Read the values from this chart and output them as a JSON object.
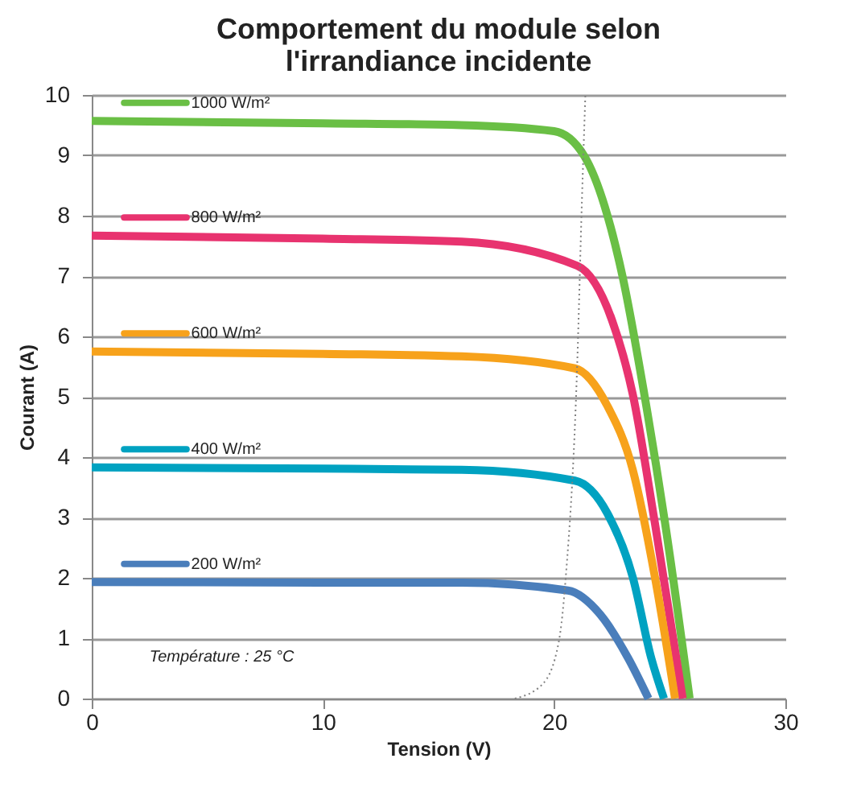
{
  "chart_data": {
    "type": "line",
    "title": "Comportement du module selon\nl'irrandiance incidente",
    "xlabel": "Tension (V)",
    "ylabel": "Courant (A)",
    "xlim": [
      0,
      30
    ],
    "xticks": [
      0,
      10,
      20,
      30
    ],
    "ylim": [
      0,
      10
    ],
    "yticks": [
      0,
      1,
      2,
      3,
      4,
      5,
      6,
      7,
      8,
      9,
      10
    ],
    "grid": "y",
    "legend": "top left",
    "marker": "none",
    "line_style": "solid",
    "annotations": [
      "Température : 25 °C"
    ],
    "series": [
      {
        "name": "1000 W/m²",
        "color": "#6abf45",
        "x": [
          0,
          10,
          16,
          20,
          21.3,
          22.96,
          23.9,
          24.8,
          25.86
        ],
        "values": [
          9.57,
          9.53,
          9.5,
          9.4,
          8.99,
          6.99,
          5.04,
          2.9,
          0
        ]
      },
      {
        "name": "800 W/m²",
        "color": "#e8336f",
        "x": [
          0,
          10,
          16,
          21.0,
          22.5,
          23.4,
          24.36,
          25.56
        ],
        "values": [
          7.67,
          7.62,
          7.57,
          7.17,
          6.27,
          5.04,
          2.9,
          0
        ]
      },
      {
        "name": "600 W/m²",
        "color": "#f7a21b",
        "x": [
          0,
          10,
          16,
          20.9,
          22.3,
          23.4,
          24.36,
          25.23
        ],
        "values": [
          5.75,
          5.71,
          5.67,
          5.47,
          4.85,
          3.79,
          2.01,
          0
        ]
      },
      {
        "name": "400 W/m²",
        "color": "#00a2c1",
        "x": [
          0,
          10,
          16,
          20.9,
          22.3,
          23.4,
          24.2,
          24.75
        ],
        "values": [
          3.83,
          3.81,
          3.79,
          3.61,
          3.07,
          2.01,
          0.67,
          0
        ]
      },
      {
        "name": "200 W/m²",
        "color": "#4a7ebb",
        "x": [
          0,
          10,
          16,
          20.6,
          22.0,
          23.2,
          24.08
        ],
        "values": [
          1.93,
          1.92,
          1.92,
          1.79,
          1.39,
          0.67,
          0
        ]
      },
      {
        "type": "line",
        "line_style": "dotted",
        "color": "#808080",
        "x": [
          18.3,
          19.5,
          20.2,
          20.5,
          21.0,
          21.2,
          21.35
        ],
        "values": [
          0,
          0.24,
          0.94,
          2.0,
          5.57,
          8.24,
          10
        ]
      }
    ]
  }
}
